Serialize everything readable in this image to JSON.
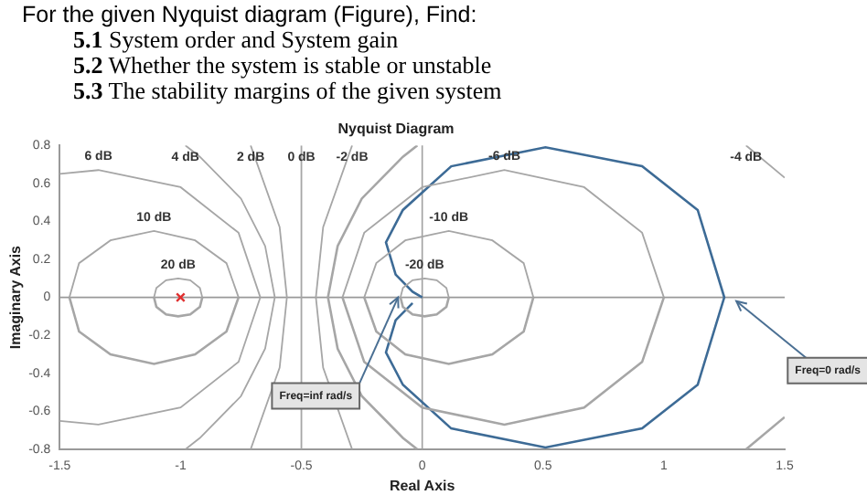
{
  "chart_data": {
    "type": "line",
    "title": "Nyquist Diagram",
    "xlabel": "Real Axis",
    "ylabel": "Imaginary Axis",
    "xlim": [
      -1.5,
      1.5
    ],
    "xticks": [
      -1.5,
      -1,
      -0.5,
      0,
      0.5,
      1,
      1.5
    ],
    "ylim": [
      -0.8,
      0.8
    ],
    "yticks": [
      -0.8,
      -0.6,
      -0.4,
      -0.2,
      0,
      0.2,
      0.4,
      0.6,
      0.8
    ],
    "grid": false,
    "legend": false,
    "ref_lines": [
      {
        "axis": "x",
        "value": 0,
        "color": "#a0a0a0"
      },
      {
        "axis": "y",
        "value": 0,
        "color": "#999999"
      }
    ],
    "annotations": [
      "For the given Nyquist diagram (Figure), Find:",
      "5.1 System order and System gain",
      "5.2 Whether the system is stable or unstable",
      "5.3 The stability margins of the given system",
      {
        "text": "Freq=inf rad/s",
        "x": -0.1,
        "y": 0
      },
      {
        "text": "Freq=0 rad/s",
        "x": 1.3,
        "y": -0.02
      }
    ],
    "series": [
      {
        "name": "6 dB",
        "color": "#a6a6a6",
        "x": [
          -1.5,
          -1.34,
          -1.0,
          -0.76,
          -0.67,
          -0.76,
          -1.0,
          -1.34,
          -1.5
        ],
        "values": [
          -0.65,
          -0.67,
          -0.58,
          -0.34,
          0,
          0.34,
          0.58,
          0.67,
          0.65
        ]
      },
      {
        "name": "4 dB",
        "color": "#a6a6a6",
        "x": [
          -0.98,
          -0.92,
          -0.75,
          -0.65,
          -0.61,
          -0.65,
          -0.75,
          -0.92,
          -0.98
        ],
        "values": [
          -0.8,
          -0.74,
          -0.52,
          -0.27,
          0,
          0.27,
          0.52,
          0.74,
          0.8
        ]
      },
      {
        "name": "2 dB",
        "color": "#a6a6a6",
        "x": [
          -0.71,
          -0.59,
          -0.56,
          -0.59,
          -0.71
        ],
        "values": [
          -0.8,
          -0.37,
          0,
          0.37,
          0.8
        ]
      },
      {
        "name": "0 dB",
        "color": "#a6a6a6",
        "x": [
          -0.5,
          -0.5
        ],
        "values": [
          -0.8,
          0.8
        ]
      },
      {
        "name": "-2 dB",
        "color": "#a6a6a6",
        "x": [
          -0.29,
          -0.41,
          -0.44,
          -0.41,
          -0.29
        ],
        "values": [
          -0.8,
          -0.37,
          0,
          0.37,
          0.8
        ]
      },
      {
        "name": "-4 dB",
        "color": "#a6a6a6",
        "x": [
          1.34,
          1.5
        ],
        "values": [
          0.8,
          0.63
        ]
      },
      {
        "color": "#a6a6a6",
        "x": [
          -0.02,
          -0.08,
          -0.25,
          -0.35,
          -0.39,
          -0.35,
          -0.25,
          -0.08,
          -0.02
        ],
        "values": [
          -0.8,
          -0.74,
          -0.52,
          -0.27,
          0,
          0.27,
          0.52,
          0.74,
          0.8
        ]
      },
      {
        "color": "#a6a6a6",
        "x": [
          1.34,
          1.5
        ],
        "values": [
          -0.8,
          -0.63
        ]
      },
      {
        "name": "-6 dB",
        "color": "#a6a6a6",
        "x": [
          1.0,
          0.91,
          0.67,
          0.34,
          0,
          -0.24,
          -0.33
        ],
        "values": [
          0,
          0.34,
          0.58,
          0.67,
          0.58,
          0.34,
          0
        ]
      },
      {
        "color": "#a6a6a6",
        "x": [
          -0.33,
          -0.24,
          0,
          0.34,
          0.67,
          0.91,
          1.0
        ],
        "values": [
          0,
          -0.34,
          -0.58,
          -0.67,
          -0.58,
          -0.34,
          0
        ]
      },
      {
        "name": "10 dB",
        "color": "#a6a6a6",
        "x": [
          -0.76,
          -0.81,
          -0.94,
          -1.11,
          -1.29,
          -1.42,
          -1.46
        ],
        "values": [
          0,
          0.18,
          0.3,
          0.35,
          0.3,
          0.18,
          0
        ]
      },
      {
        "color": "#a6a6a6",
        "x": [
          -1.46,
          -1.42,
          -1.29,
          -1.11,
          -0.94,
          -0.81,
          -0.76
        ],
        "values": [
          0,
          -0.18,
          -0.3,
          -0.35,
          -0.3,
          -0.18,
          0
        ]
      },
      {
        "name": "-10 dB",
        "color": "#a6a6a6",
        "x": [
          0.46,
          0.42,
          0.29,
          0.11,
          -0.07,
          -0.19,
          -0.24
        ],
        "values": [
          0,
          0.18,
          0.3,
          0.35,
          0.3,
          0.18,
          0
        ]
      },
      {
        "color": "#a6a6a6",
        "x": [
          -0.24,
          -0.19,
          -0.07,
          0.11,
          0.29,
          0.42,
          0.46
        ],
        "values": [
          0,
          -0.18,
          -0.3,
          -0.35,
          -0.3,
          -0.18,
          0
        ]
      },
      {
        "name": "20 dB",
        "color": "#a6a6a6",
        "x": [
          -0.91,
          -0.92,
          -0.96,
          -1.01,
          -1.06,
          -1.1,
          -1.11
        ],
        "values": [
          0,
          0.05,
          0.09,
          0.1,
          0.09,
          0.05,
          0
        ]
      },
      {
        "color": "#a6a6a6",
        "x": [
          -1.11,
          -1.1,
          -1.06,
          -1.01,
          -0.96,
          -0.92,
          -0.91
        ],
        "values": [
          0,
          -0.05,
          -0.09,
          -0.1,
          -0.09,
          -0.05,
          0
        ]
      },
      {
        "name": "-20 dB",
        "color": "#a6a6a6",
        "x": [
          0.11,
          0.1,
          0.06,
          0.01,
          -0.04,
          -0.08,
          -0.09
        ],
        "values": [
          0,
          0.05,
          0.09,
          0.1,
          0.09,
          0.05,
          0
        ]
      },
      {
        "color": "#a6a6a6",
        "x": [
          -0.09,
          -0.08,
          -0.04,
          0.01,
          0.06,
          0.1,
          0.11
        ],
        "values": [
          0,
          -0.05,
          -0.09,
          -0.1,
          -0.09,
          -0.05,
          0
        ]
      },
      {
        "color": "#3d6b96",
        "x": [
          0,
          -0.04,
          -0.11,
          -0.15,
          -0.08,
          0.12,
          0.51,
          0.91,
          1.14,
          1.25,
          1.14,
          0.91,
          0.51,
          0.12,
          -0.08,
          -0.15,
          -0.11,
          -0.04
        ],
        "values": [
          0,
          0.03,
          0.12,
          0.29,
          0.46,
          0.69,
          0.79,
          0.69,
          0.46,
          0,
          -0.46,
          -0.69,
          -0.79,
          -0.69,
          -0.46,
          -0.29,
          -0.12,
          -0.03
        ]
      },
      {
        "type": "scatter",
        "color": "#e03030",
        "marker": "cross",
        "x": [
          -1
        ],
        "values": [
          0
        ]
      }
    ]
  }
}
